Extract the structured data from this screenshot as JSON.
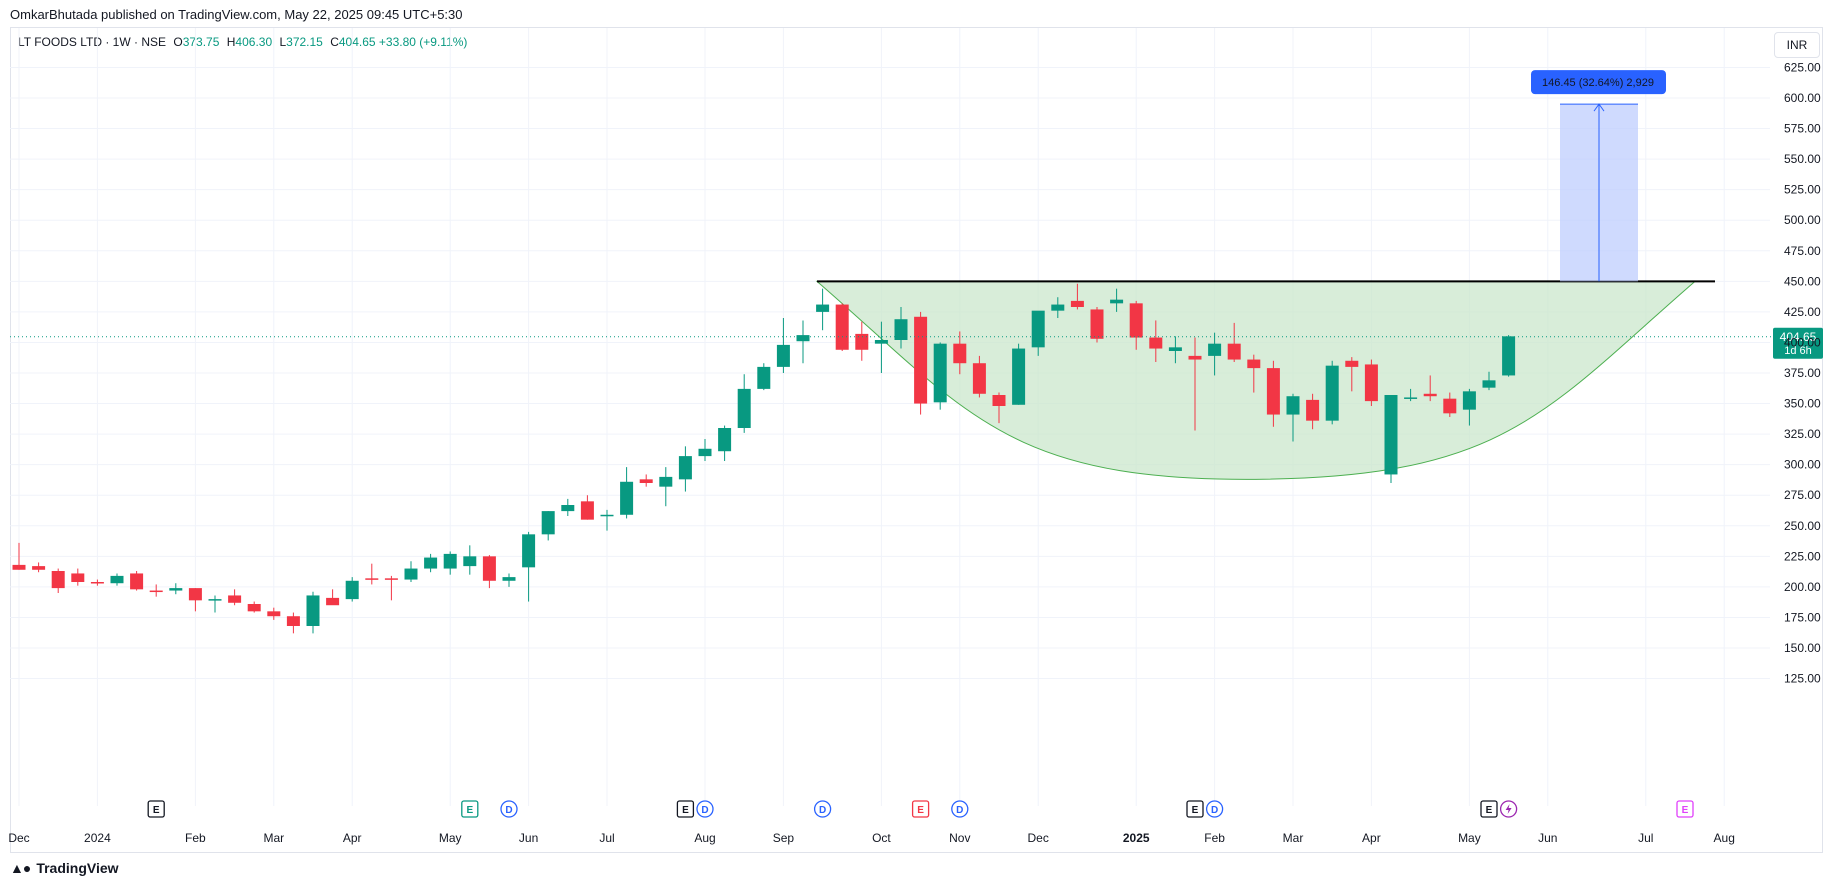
{
  "header": {
    "publisher_text": "OmkarBhutada published on TradingView.com, May 22, 2025 09:45 UTC+5:30"
  },
  "symbol": {
    "name": "LT FOODS LTD · 1W · NSE",
    "open_label": "O",
    "open": "373.75",
    "high_label": "H",
    "high": "406.30",
    "low_label": "L",
    "low": "372.15",
    "close_label": "C",
    "close": "404.65",
    "change": "+33.80 (+9.11%)"
  },
  "currency": "INR",
  "colors": {
    "up": "#089981",
    "down": "#f23645",
    "cup_fill": "#c8e6c9",
    "projection_fill": "#bbcbfd",
    "projection_line": "#2962ff",
    "badge": "#2962ff",
    "resistance": "#000000"
  },
  "price_tag": {
    "price": "404.65",
    "countdown": "1d 6h"
  },
  "projection": {
    "label": "146.45 (32.64%) 2,929",
    "from": 450,
    "to": 595
  },
  "footer": {
    "brand": "TradingView"
  },
  "chart_data": {
    "type": "candlestick",
    "interval": "1W",
    "currency": "INR",
    "y_range": [
      115,
      635
    ],
    "y_ticks": [
      125,
      150,
      175,
      200,
      225,
      250,
      275,
      300,
      325,
      350,
      375,
      400,
      425,
      450,
      475,
      500,
      525,
      550,
      575,
      600,
      625
    ],
    "y_tick_labels": [
      "125.00",
      "150.00",
      "175.00",
      "200.00",
      "225.00",
      "250.00",
      "275.00",
      "300.00",
      "325.00",
      "350.00",
      "375.00",
      "400.00",
      "425.00",
      "450.00",
      "475.00",
      "500.00",
      "525.00",
      "550.00",
      "575.00",
      "600.00",
      "625.00"
    ],
    "x_labels": [
      {
        "text": "Dec",
        "bar": 0,
        "bold": false
      },
      {
        "text": "2024",
        "bar": 4,
        "bold": false
      },
      {
        "text": "Feb",
        "bar": 9,
        "bold": false
      },
      {
        "text": "Mar",
        "bar": 13,
        "bold": false
      },
      {
        "text": "Apr",
        "bar": 17,
        "bold": false
      },
      {
        "text": "May",
        "bar": 22,
        "bold": false
      },
      {
        "text": "Jun",
        "bar": 26,
        "bold": false
      },
      {
        "text": "Jul",
        "bar": 30,
        "bold": false
      },
      {
        "text": "Aug",
        "bar": 35,
        "bold": false
      },
      {
        "text": "Sep",
        "bar": 39,
        "bold": false
      },
      {
        "text": "Oct",
        "bar": 44,
        "bold": false
      },
      {
        "text": "Nov",
        "bar": 48,
        "bold": false
      },
      {
        "text": "Dec",
        "bar": 52,
        "bold": false
      },
      {
        "text": "2025",
        "bar": 57,
        "bold": true
      },
      {
        "text": "Feb",
        "bar": 61,
        "bold": false
      },
      {
        "text": "Mar",
        "bar": 65,
        "bold": false
      },
      {
        "text": "Apr",
        "bar": 69,
        "bold": false
      },
      {
        "text": "May",
        "bar": 74,
        "bold": false
      },
      {
        "text": "Jun",
        "bar": 78,
        "bold": false
      },
      {
        "text": "Jul",
        "bar": 83,
        "bold": false
      },
      {
        "text": "Aug",
        "bar": 87,
        "bold": false
      }
    ],
    "candles": [
      [
        218,
        236,
        214,
        214
      ],
      [
        217,
        220,
        212,
        214
      ],
      [
        213,
        215,
        195,
        199
      ],
      [
        211,
        215,
        201,
        204
      ],
      [
        204,
        206,
        201,
        203
      ],
      [
        203,
        211,
        201,
        209
      ],
      [
        211,
        213,
        197,
        198
      ],
      [
        197,
        202,
        192,
        196
      ],
      [
        197,
        203,
        194,
        199
      ],
      [
        199,
        199,
        180,
        189
      ],
      [
        190,
        193,
        179,
        190
      ],
      [
        193,
        198,
        185,
        187
      ],
      [
        186,
        188,
        179,
        180
      ],
      [
        180,
        183,
        173,
        176
      ],
      [
        176,
        179,
        162,
        168
      ],
      [
        168,
        196,
        162,
        193
      ],
      [
        191,
        198,
        186,
        185
      ],
      [
        190,
        208,
        188,
        205
      ],
      [
        207,
        219,
        202,
        206
      ],
      [
        207,
        209,
        189,
        206
      ],
      [
        206,
        221,
        204,
        215
      ],
      [
        215,
        227,
        212,
        224
      ],
      [
        215,
        229,
        210,
        227
      ],
      [
        217,
        234,
        210,
        225
      ],
      [
        225,
        226,
        199,
        205
      ],
      [
        205,
        211,
        200,
        208
      ],
      [
        216,
        245,
        188,
        243
      ],
      [
        243,
        262,
        238,
        262
      ],
      [
        262,
        272,
        258,
        267
      ],
      [
        270,
        275,
        255,
        255
      ],
      [
        259,
        263,
        246,
        259
      ],
      [
        259,
        298,
        256,
        286
      ],
      [
        288,
        292,
        282,
        285
      ],
      [
        282,
        298,
        266,
        290
      ],
      [
        288,
        315,
        278,
        307
      ],
      [
        307,
        321,
        303,
        313
      ],
      [
        311,
        332,
        303,
        330
      ],
      [
        330,
        374,
        326,
        362
      ],
      [
        362,
        383,
        361,
        380
      ],
      [
        380,
        420,
        375,
        398
      ],
      [
        401,
        418,
        383,
        406
      ],
      [
        425,
        444,
        410,
        431
      ],
      [
        431,
        432,
        393,
        394
      ],
      [
        407,
        417,
        385,
        394
      ],
      [
        399,
        417,
        375,
        402
      ],
      [
        402,
        429,
        395,
        419
      ],
      [
        421,
        425,
        341,
        350
      ],
      [
        351,
        400,
        345,
        399
      ],
      [
        399,
        409,
        374,
        383
      ],
      [
        383,
        389,
        355,
        358
      ],
      [
        357,
        359,
        334,
        348
      ],
      [
        349,
        399,
        349,
        395
      ],
      [
        396,
        421,
        389,
        426
      ],
      [
        426,
        437,
        420,
        431
      ],
      [
        434,
        448,
        427,
        429
      ],
      [
        427,
        429,
        400,
        403
      ],
      [
        432,
        444,
        425,
        435
      ],
      [
        432,
        434,
        394,
        404
      ],
      [
        404,
        418,
        384,
        395
      ],
      [
        393,
        405,
        383,
        396
      ],
      [
        389,
        404,
        328,
        386
      ],
      [
        389,
        408,
        373,
        399
      ],
      [
        399,
        416,
        384,
        386
      ],
      [
        386,
        390,
        359,
        379
      ],
      [
        379,
        385,
        331,
        341
      ],
      [
        341,
        358,
        319,
        356
      ],
      [
        353,
        358,
        329,
        336
      ],
      [
        336,
        385,
        333,
        381
      ],
      [
        385,
        388,
        360,
        380
      ],
      [
        382,
        386,
        348,
        352
      ],
      [
        292,
        354,
        285,
        357
      ],
      [
        355,
        362,
        352,
        355
      ],
      [
        358,
        373,
        352,
        356
      ],
      [
        354,
        359,
        339,
        342
      ],
      [
        345,
        362,
        332,
        360
      ],
      [
        363,
        376,
        361,
        369
      ],
      [
        373,
        406,
        372,
        405
      ]
    ],
    "resistance_level": 450,
    "cup_bottom": 288,
    "projection_from": 450,
    "projection_to": 595,
    "events": [
      {
        "type": "E",
        "bar": 7,
        "color": "#131722"
      },
      {
        "type": "E",
        "bar": 23,
        "color": "#089981"
      },
      {
        "type": "D",
        "bar": 25,
        "color": "#2962ff"
      },
      {
        "type": "E",
        "bar": 34,
        "color": "#131722"
      },
      {
        "type": "D",
        "bar": 35,
        "color": "#2962ff"
      },
      {
        "type": "D",
        "bar": 41,
        "color": "#2962ff"
      },
      {
        "type": "E",
        "bar": 46,
        "color": "#f23645"
      },
      {
        "type": "D",
        "bar": 48,
        "color": "#2962ff"
      },
      {
        "type": "E",
        "bar": 60,
        "color": "#131722"
      },
      {
        "type": "D",
        "bar": 61,
        "color": "#2962ff"
      },
      {
        "type": "E",
        "bar": 75,
        "color": "#131722"
      },
      {
        "type": "S",
        "bar": 76,
        "color": "#9c27b0"
      },
      {
        "type": "E",
        "bar": 85,
        "color": "#e040fb"
      }
    ]
  }
}
